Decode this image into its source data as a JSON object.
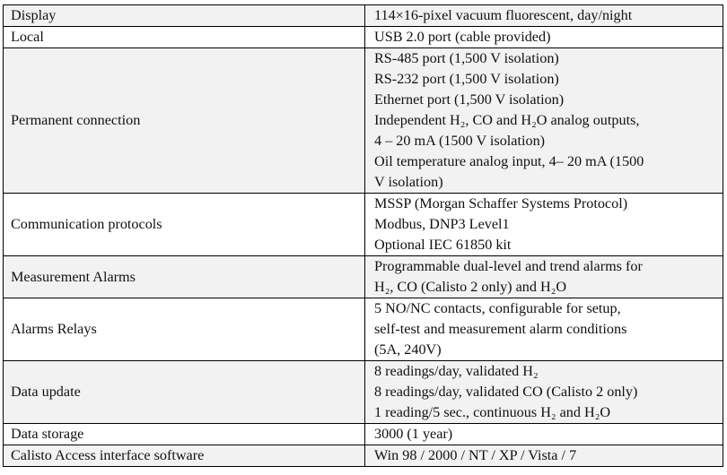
{
  "rows": [
    {
      "label": "Display",
      "lines": [
        "114×16-pixel vacuum fluorescent, day/night"
      ]
    },
    {
      "label": "Local",
      "lines": [
        "USB 2.0 port (cable provided)"
      ]
    },
    {
      "label": "Permanent connection",
      "lines": [
        "RS-485 port (1,500 V isolation)",
        "RS-232 port (1,500 V isolation)",
        "Ethernet port (1,500 V isolation)",
        "Independent H₂, CO and H₂O analog outputs,",
        "4 – 20 mA (1500 V isolation)",
        "Oil temperature analog input, 4– 20 mA (1500",
        "V isolation)"
      ]
    },
    {
      "label": "Communication protocols",
      "lines": [
        "MSSP (Morgan Schaffer Systems Protocol)",
        "Modbus, DNP3 Level1",
        "Optional IEC 61850 kit"
      ]
    },
    {
      "label": "Measurement Alarms",
      "lines": [
        "Programmable dual-level and trend alarms for",
        "H₂, CO (Calisto 2 only) and H₂O"
      ]
    },
    {
      "label": "Alarms Relays",
      "lines": [
        "5 NO/NC contacts, configurable for setup,",
        "self-test and measurement alarm conditions",
        "(5A, 240V)"
      ]
    },
    {
      "label": "Data update",
      "lines": [
        "8 readings/day, validated H₂",
        "8 readings/day, validated CO (Calisto 2 only)",
        "1 reading/5 sec., continuous H₂ and H₂O"
      ]
    },
    {
      "label": "Data storage",
      "lines": [
        "3000 (1 year)"
      ]
    },
    {
      "label": "Calisto Access interface software",
      "lines": [
        "Win 98 / 2000 / NT / XP / Vista / 7"
      ]
    }
  ]
}
